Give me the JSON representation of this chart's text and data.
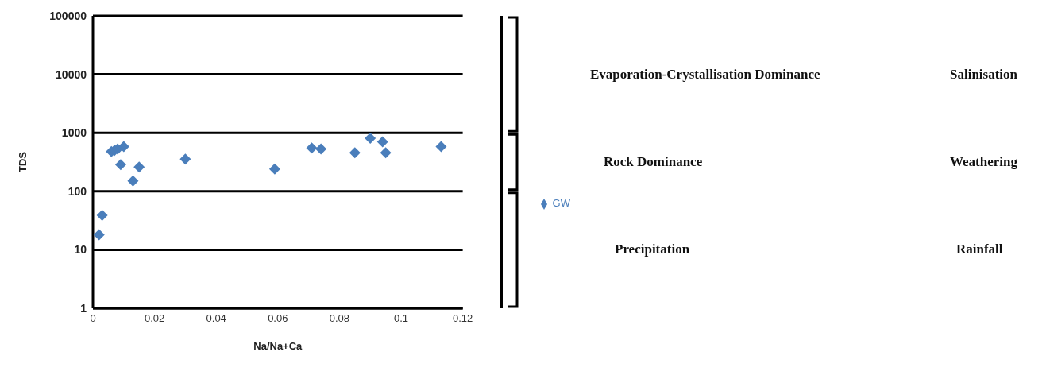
{
  "chart_data": {
    "type": "scatter",
    "xlabel": "Na/Na+Ca",
    "ylabel": "TDS",
    "xlim": [
      0,
      0.12
    ],
    "xticks": [
      0,
      0.02,
      0.04,
      0.06,
      0.08,
      0.1,
      0.12
    ],
    "ylim": [
      1,
      100000
    ],
    "yticks": [
      1,
      10,
      100,
      1000,
      10000,
      100000
    ],
    "log": "y",
    "grid": "y",
    "legend": "right",
    "marker": "diamond",
    "series": [
      {
        "name": "GW",
        "color": "#4a7ebb",
        "x": [
          0.002,
          0.003,
          0.006,
          0.007,
          0.008,
          0.01,
          0.009,
          0.013,
          0.015,
          0.03,
          0.059,
          0.071,
          0.074,
          0.085,
          0.09,
          0.094,
          0.095,
          0.113
        ],
        "values": [
          18,
          39,
          480,
          500,
          530,
          580,
          285,
          150,
          260,
          355,
          240,
          550,
          530,
          455,
          810,
          700,
          455,
          580
        ]
      }
    ],
    "annotations": [
      "Evaporation-Crystallisation Dominance",
      "Salinisation",
      "Rock Dominance",
      "Weathering",
      "Precipitation",
      "Rainfall"
    ]
  }
}
